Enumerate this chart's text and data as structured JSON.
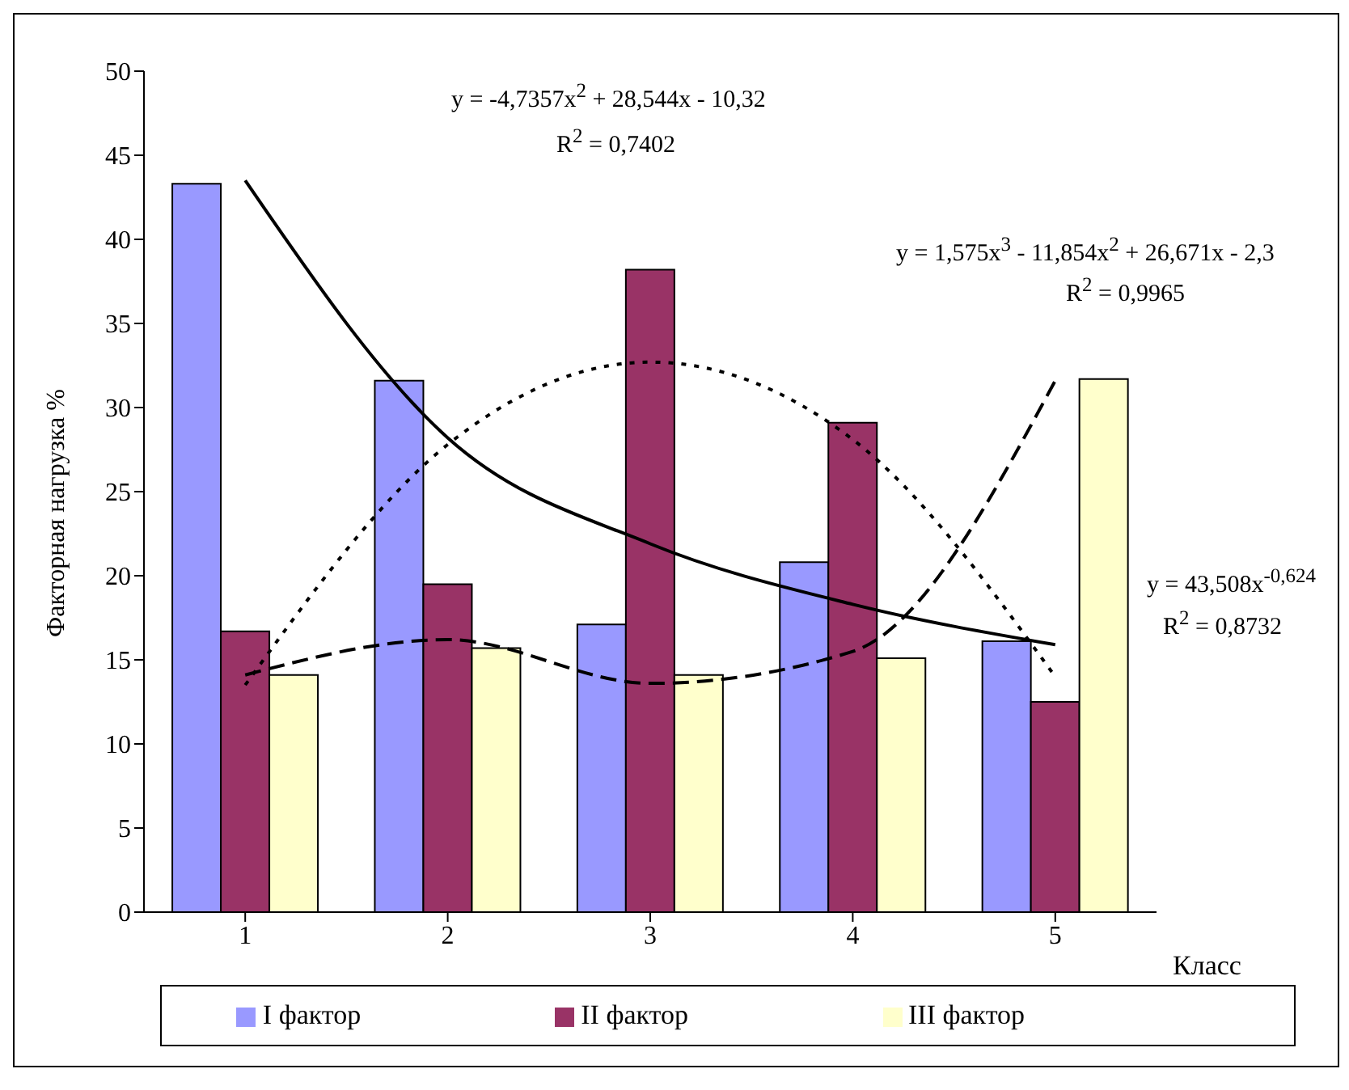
{
  "chart_data": {
    "type": "bar",
    "ylabel": "Факторная нагрузка %",
    "xlabel": "Класс",
    "categories": [
      "1",
      "2",
      "3",
      "4",
      "5"
    ],
    "series": [
      {
        "name": "I фактор",
        "color": "#9999ff",
        "values": [
          43.3,
          31.6,
          17.1,
          20.8,
          16.1
        ]
      },
      {
        "name": "II фактор",
        "color": "#993366",
        "values": [
          16.7,
          19.5,
          38.2,
          29.1,
          12.5
        ]
      },
      {
        "name": "III фактор",
        "color": "#ffffcc",
        "values": [
          14.1,
          15.7,
          14.1,
          15.1,
          31.7
        ]
      },
      {
        "type": "line",
        "color": "#000000",
        "line_style": "solid",
        "values": [
          43.5,
          28.2,
          21.9,
          18.3,
          15.9
        ]
      },
      {
        "type": "line",
        "color": "#000000",
        "line_style": "dotted",
        "values": [
          13.5,
          27.8,
          32.7,
          28.1,
          14.0
        ]
      },
      {
        "type": "line",
        "color": "#000000",
        "line_style": "dashed",
        "values": [
          14.1,
          16.2,
          13.6,
          15.5,
          31.6
        ]
      }
    ],
    "ylim": [
      0,
      50
    ],
    "yticks": [
      0,
      5,
      10,
      15,
      20,
      25,
      30,
      35,
      40,
      45,
      50
    ],
    "grid": false,
    "legend": "bottom",
    "marker": "none",
    "annotations": [
      "y = -4,7357x$^{2}$ + 28,544x - 10,32",
      "R$^{2}$ = 0,7402",
      "y = 1,575x$^{3}$ - 11,854x$^{2}$ + 26,671x - 2,3",
      "R$^{2}$ = 0,9965",
      "y = 43,508x$^{-0,624}$",
      "R$^{2}$ = 0,8732"
    ]
  }
}
